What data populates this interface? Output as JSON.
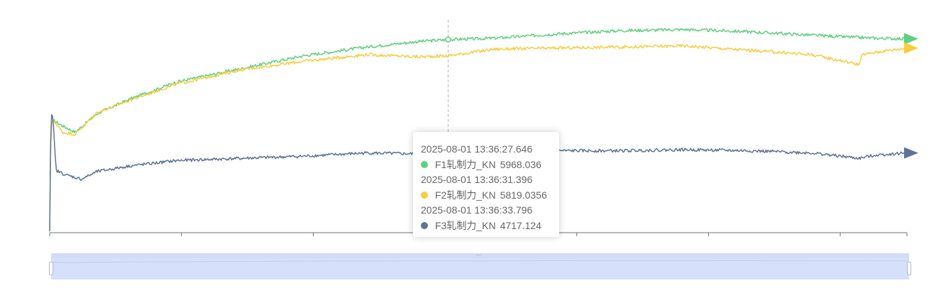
{
  "chart_data": {
    "type": "line",
    "series": [
      {
        "name": "F1轧制力_KN",
        "color": "#5fd07e",
        "points": [
          [
            0,
            4210
          ],
          [
            0.4,
            5170
          ],
          [
            1,
            5230
          ],
          [
            4,
            5180
          ],
          [
            8,
            5120
          ],
          [
            15,
            5290
          ],
          [
            25,
            5420
          ],
          [
            40,
            5580
          ],
          [
            60,
            5700
          ],
          [
            80,
            5820
          ],
          [
            100,
            5900
          ],
          [
            116,
            5950
          ],
          [
            125.5,
            5968.036
          ],
          [
            140,
            5980
          ],
          [
            160,
            6020
          ],
          [
            180,
            6050
          ],
          [
            200,
            6060
          ],
          [
            220,
            6040
          ],
          [
            245,
            6000
          ],
          [
            260,
            5980
          ],
          [
            270,
            5975
          ]
        ],
        "markers": [
          [
            125.5,
            5968.036
          ]
        ]
      },
      {
        "name": "F2轧制力_KN",
        "color": "#f9cc3c",
        "points": [
          [
            0,
            4210
          ],
          [
            0.4,
            5170
          ],
          [
            1,
            5230
          ],
          [
            2,
            5200
          ],
          [
            4,
            5120
          ],
          [
            8,
            5100
          ],
          [
            15,
            5300
          ],
          [
            25,
            5410
          ],
          [
            40,
            5560
          ],
          [
            60,
            5690
          ],
          [
            80,
            5770
          ],
          [
            100,
            5830
          ],
          [
            116,
            5810
          ],
          [
            125.5,
            5819.0356
          ],
          [
            140,
            5880
          ],
          [
            160,
            5890
          ],
          [
            180,
            5900
          ],
          [
            200,
            5910
          ],
          [
            220,
            5870
          ],
          [
            240,
            5830
          ],
          [
            255,
            5740
          ],
          [
            256,
            5830
          ],
          [
            262,
            5860
          ],
          [
            270,
            5890
          ]
        ]
      },
      {
        "name": "F3轧制力_KN",
        "color": "#5f7398",
        "points": [
          [
            0,
            4215
          ],
          [
            0.4,
            5290
          ],
          [
            1,
            5260
          ],
          [
            2,
            4770
          ],
          [
            5,
            4730
          ],
          [
            10,
            4690
          ],
          [
            15,
            4760
          ],
          [
            25,
            4810
          ],
          [
            40,
            4860
          ],
          [
            60,
            4880
          ],
          [
            80,
            4900
          ],
          [
            100,
            4930
          ],
          [
            116,
            4920
          ],
          [
            125.5,
            4717.124
          ],
          [
            140,
            4940
          ],
          [
            160,
            4950
          ],
          [
            180,
            4950
          ],
          [
            200,
            4960
          ],
          [
            220,
            4950
          ],
          [
            240,
            4930
          ],
          [
            255,
            4880
          ],
          [
            260,
            4910
          ],
          [
            270,
            4930
          ]
        ],
        "markers": [
          [
            125.5,
            4717.124
          ]
        ]
      }
    ],
    "axisPointer_x": 125.5,
    "xlim": [
      0,
      270
    ],
    "ylim": [
      4200,
      6200
    ],
    "x_ticks": [
      0,
      41.5,
      83,
      124.5,
      166,
      207.5,
      249,
      270
    ],
    "grid": false,
    "legend": "none",
    "tooltip": {
      "rows": [
        {
          "time": "2025-08-01 13:36:27.646",
          "color": "#5fd07e",
          "name": "F1轧制力_KN",
          "value": "5968.036"
        },
        {
          "time": "2025-08-01 13:36:31.396",
          "color": "#f9cc3c",
          "name": "F2轧制力_KN",
          "value": "5819.0356"
        },
        {
          "time": "2025-08-01 13:36:33.796",
          "color": "#5f7398",
          "name": "F3轧制力_KN",
          "value": "4717.124"
        }
      ]
    },
    "dataZoom": {
      "start_percent": 0,
      "end_percent": 100
    }
  }
}
